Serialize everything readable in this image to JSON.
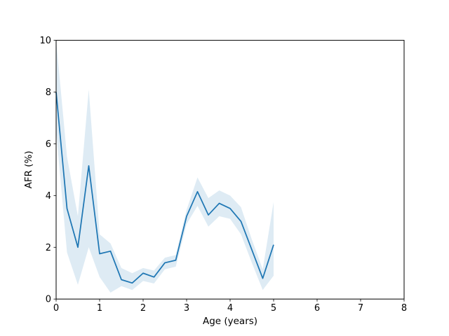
{
  "figure": {
    "title": "",
    "background": "#ffffff"
  },
  "chart_data": {
    "type": "line",
    "title": "",
    "xlabel": "Age (years)",
    "ylabel": "AFR (%)",
    "xlim": [
      0,
      8
    ],
    "ylim": [
      0,
      10
    ],
    "xticks": [
      0,
      1,
      2,
      3,
      4,
      5,
      6,
      7,
      8
    ],
    "yticks": [
      0,
      2,
      4,
      6,
      8,
      10
    ],
    "grid": false,
    "legend": null,
    "axis_color": "#000000",
    "series": [
      {
        "name": "afr-line",
        "color": "#1f77b4",
        "line_width": 1.75,
        "x": [
          0.0,
          0.25,
          0.5,
          0.75,
          1.0,
          1.25,
          1.5,
          1.75,
          2.0,
          2.25,
          2.5,
          2.75,
          3.0,
          3.25,
          3.5,
          3.75,
          4.0,
          4.25,
          4.5,
          4.75,
          5.0
        ],
        "y": [
          8.0,
          3.5,
          2.0,
          5.15,
          1.75,
          1.85,
          0.75,
          0.62,
          1.0,
          0.85,
          1.4,
          1.5,
          3.2,
          4.15,
          3.25,
          3.7,
          3.5,
          3.0,
          1.9,
          0.8,
          2.1
        ],
        "band_lower": [
          6.5,
          1.8,
          0.55,
          2.0,
          0.85,
          0.25,
          0.5,
          0.35,
          0.7,
          0.6,
          1.15,
          1.25,
          2.9,
          3.6,
          2.8,
          3.2,
          3.1,
          2.5,
          1.4,
          0.35,
          0.9
        ],
        "band_upper": [
          10.0,
          5.5,
          3.2,
          8.1,
          2.5,
          2.15,
          1.2,
          1.0,
          1.2,
          1.1,
          1.6,
          1.7,
          3.45,
          4.7,
          3.9,
          4.2,
          4.0,
          3.55,
          2.3,
          1.15,
          3.75
        ],
        "band_color": "#1f77b4",
        "band_opacity": 0.15
      }
    ]
  }
}
